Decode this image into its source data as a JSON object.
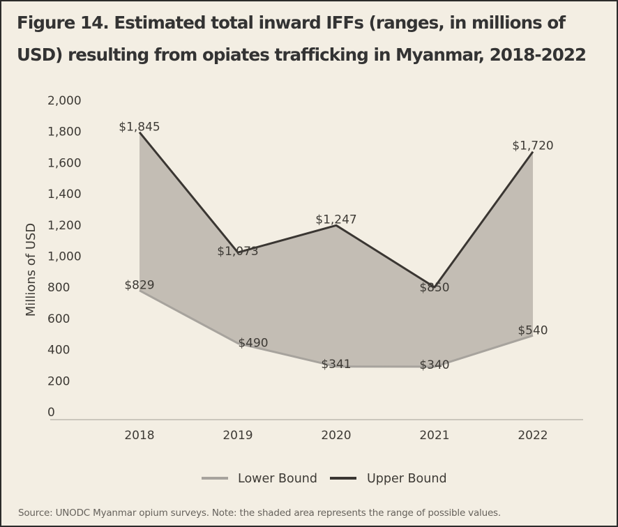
{
  "title": "Figure 14. Estimated total inward IFFs (ranges, in millions of USD) resulting from opiates trafficking in Myanmar, 2018-2022",
  "source": "Source: UNODC Myanmar opium surveys. Note: the shaded area represents the range of possible values.",
  "colors": {
    "background": "#f3eee3",
    "band": "#c3bdb4",
    "upper_line": "#3a3632",
    "lower_line": "#a7a39d",
    "axis": "#bdb8b0"
  },
  "chart_data": {
    "type": "area",
    "title": "Figure 14. Estimated total inward IFFs (ranges, in millions of USD) resulting from opiates trafficking in Myanmar, 2018-2022",
    "xlabel": "",
    "ylabel": "Millions of USD",
    "ylim": [
      0,
      2000
    ],
    "yticks": [
      "0",
      "200",
      "400",
      "600",
      "800",
      "1,000",
      "1,200",
      "1,400",
      "1,600",
      "1,800",
      "2,000"
    ],
    "categories": [
      "2018",
      "2019",
      "2020",
      "2021",
      "2022"
    ],
    "series": [
      {
        "name": "Lower Bound",
        "values": [
          829,
          490,
          341,
          340,
          540
        ],
        "labels": [
          "$829",
          "$490",
          "$341",
          "$340",
          "$540"
        ]
      },
      {
        "name": "Upper Bound",
        "values": [
          1845,
          1073,
          1247,
          850,
          1720
        ],
        "labels": [
          "$1,845",
          "$1,073",
          "$1,247",
          "$850",
          "$1,720"
        ]
      }
    ],
    "grid": false,
    "legend_position": "bottom-center"
  }
}
